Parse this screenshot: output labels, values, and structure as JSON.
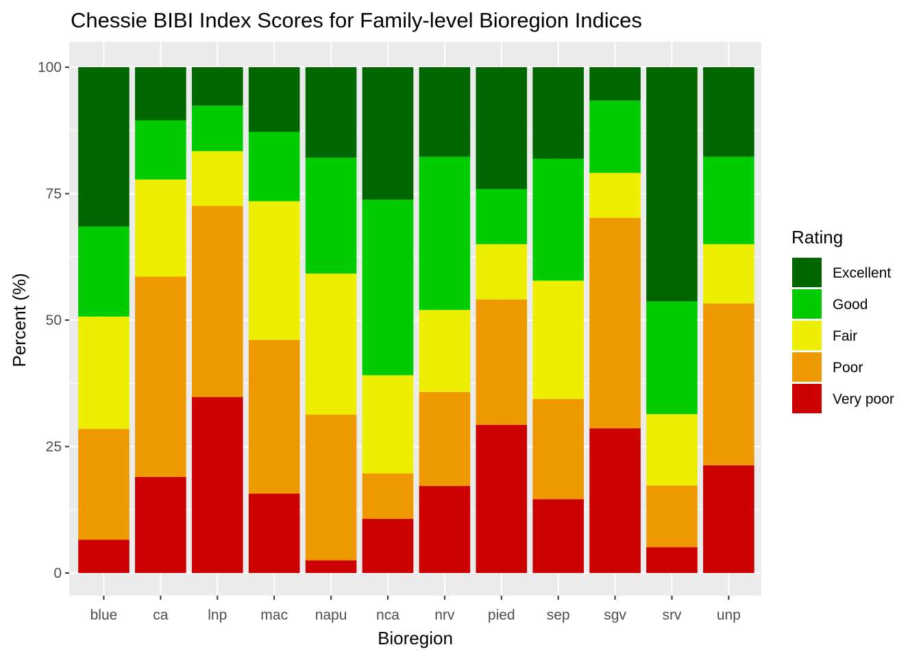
{
  "chart_data": {
    "type": "bar",
    "stacked": true,
    "title": "Chessie BIBI Index Scores for Family-level Bioregion Indices",
    "xlabel": "Bioregion",
    "ylabel": "Percent (%)",
    "ylim": [
      0,
      100
    ],
    "yticks": [
      0,
      25,
      50,
      75,
      100
    ],
    "grid": true,
    "categories": [
      "blue",
      "ca",
      "lnp",
      "mac",
      "napu",
      "nca",
      "nrv",
      "pied",
      "sep",
      "sgv",
      "srv",
      "unp"
    ],
    "legend": {
      "title": "Rating",
      "position": "right",
      "entries": [
        "Excellent",
        "Good",
        "Fair",
        "Poor",
        "Very poor"
      ]
    },
    "series": [
      {
        "name": "Very poor",
        "color": "#cc0000",
        "values": [
          6.6,
          19.0,
          34.8,
          15.7,
          2.5,
          10.7,
          17.2,
          29.3,
          14.6,
          28.6,
          5.1,
          21.3
        ]
      },
      {
        "name": "Poor",
        "color": "#ee9900",
        "values": [
          21.9,
          39.6,
          37.8,
          30.4,
          28.8,
          9.0,
          18.6,
          24.8,
          19.8,
          41.6,
          12.2,
          32.0
        ]
      },
      {
        "name": "Fair",
        "color": "#eeee00",
        "values": [
          22.2,
          19.2,
          10.8,
          27.4,
          27.9,
          19.4,
          16.2,
          10.9,
          23.4,
          8.9,
          14.1,
          11.7
        ]
      },
      {
        "name": "Good",
        "color": "#00cc00",
        "values": [
          17.8,
          11.7,
          9.0,
          13.7,
          22.9,
          34.7,
          30.3,
          10.9,
          24.1,
          14.3,
          22.3,
          17.3
        ]
      },
      {
        "name": "Excellent",
        "color": "#006600",
        "values": [
          31.5,
          10.5,
          7.6,
          12.8,
          17.9,
          26.2,
          17.7,
          24.1,
          18.1,
          6.6,
          46.3,
          17.7
        ]
      }
    ]
  }
}
